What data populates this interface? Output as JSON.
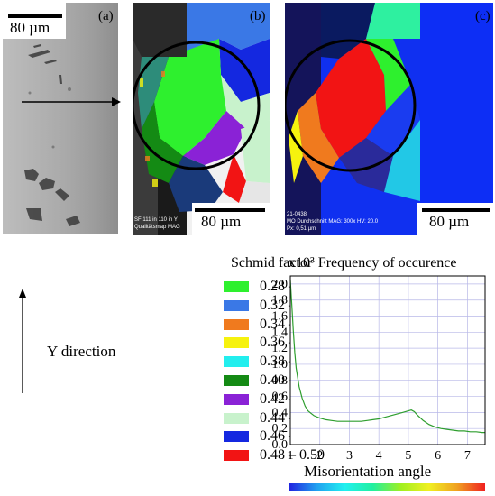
{
  "panels": {
    "a": {
      "label": "(a)",
      "scale": "80 µm"
    },
    "b": {
      "label": "(b)",
      "scale": "80 µm",
      "caption_line1": "SF  111 in 110 in Y",
      "caption_line2": "Qualitätsmap    MAG"
    },
    "c": {
      "label": "(c)",
      "scale": "80 µm",
      "caption_line1": "21-0438",
      "caption_line2": "MO Durchschnitt   MAG: 300x   HV: 20.0",
      "caption_line3": "Px: 0,51 µm"
    }
  },
  "y_direction_label": "Y direction",
  "legend": {
    "title": "Schmid factor",
    "items": [
      {
        "label": "0.28 – 0.32",
        "color": "#2ef02e"
      },
      {
        "label": "0.32 – 0.34",
        "color": "#3a78e6"
      },
      {
        "label": "0.34 – 0.36",
        "color": "#f07a1e"
      },
      {
        "label": "0.36 – 0.38",
        "color": "#f6f20e"
      },
      {
        "label": "0.38 – 0.40",
        "color": "#22eeee"
      },
      {
        "label": "0.40 – 0.42",
        "color": "#148a14"
      },
      {
        "label": "0.42 – 0.44",
        "color": "#8a22d6"
      },
      {
        "label": "0.44 – 0.46",
        "color": "#c8f2cc"
      },
      {
        "label": "0.46 – 0.48",
        "color": "#1428e0"
      },
      {
        "label": "0.48 – 0.50",
        "color": "#f21414"
      }
    ]
  },
  "chart_data": {
    "type": "line",
    "title": "x10³ Frequency of occurence",
    "xlabel": "Misorientation angle",
    "ylabel": "",
    "xlim": [
      1,
      7.6
    ],
    "ylim": [
      0,
      2.1
    ],
    "x_ticks": [
      "1",
      "2",
      "3",
      "4",
      "5",
      "6",
      "7"
    ],
    "y_ticks": [
      "0.0",
      "0.2",
      "0.4",
      "0.6",
      "0.8",
      "1.0",
      "1.2",
      "1.4",
      "1.6",
      "1.8",
      "2.0"
    ],
    "grid": true,
    "series_color": "#2e9e2e",
    "series": [
      {
        "x": [
          1.0,
          1.05,
          1.1,
          1.15,
          1.2,
          1.3,
          1.4,
          1.5,
          1.6,
          1.7,
          1.8,
          2.0,
          2.2,
          2.4,
          2.6,
          2.8,
          3.0,
          3.2,
          3.4,
          3.6,
          3.8,
          4.0,
          4.2,
          4.4,
          4.6,
          4.8,
          5.0,
          5.1,
          5.2,
          5.3,
          5.5,
          5.7,
          5.9,
          6.1,
          6.3,
          6.5,
          6.7,
          6.9,
          7.1,
          7.3,
          7.5,
          7.6
        ],
        "values": [
          2.05,
          1.75,
          1.42,
          1.15,
          0.95,
          0.72,
          0.58,
          0.48,
          0.42,
          0.39,
          0.36,
          0.33,
          0.31,
          0.3,
          0.29,
          0.29,
          0.29,
          0.29,
          0.29,
          0.3,
          0.31,
          0.32,
          0.34,
          0.36,
          0.38,
          0.4,
          0.42,
          0.43,
          0.41,
          0.37,
          0.3,
          0.25,
          0.22,
          0.2,
          0.19,
          0.18,
          0.17,
          0.17,
          0.16,
          0.16,
          0.15,
          0.15
        ]
      }
    ]
  }
}
